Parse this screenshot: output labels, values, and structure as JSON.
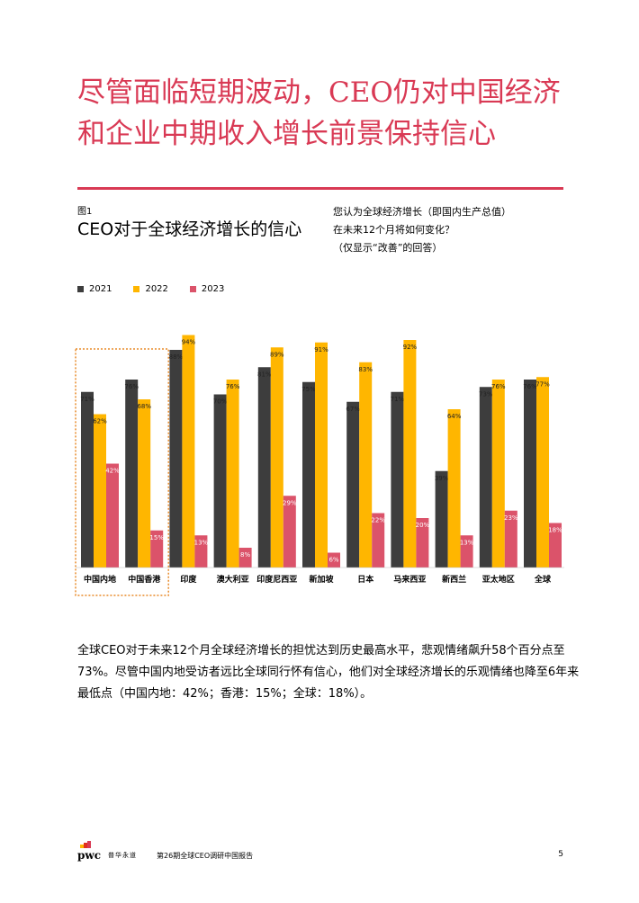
{
  "page": {
    "headline": "尽管面临短期波动，CEO仍对中国经济和企业中期收入增长前景保持信心",
    "figure_label": "图1",
    "figure_title": "CEO对于全球经济增长的信心",
    "question_lines": [
      "您认为全球经济增长（即国内生产总值）",
      "在未来12个月将如何变化？",
      "（仅显示“改善”的回答）"
    ],
    "body_text": "全球CEO对于未来12个月全球经济增长的担忧达到历史最高水平，悲观情绪飙升58个百分点至73%。尽管中国内地受访者远比全球同行怀有信心，他们对全球经济增长的乐观情绪也降至6年来最低点（中国内地：42%；香港：15%；全球：18%）。",
    "footer": {
      "brand": "pwc",
      "brand_cn": "普华永道",
      "report_title": "第26期全球CEO调研中国报告",
      "page_number": "5"
    },
    "colors": {
      "accent": "#d93954",
      "s2021": "#3d3d3d",
      "s2022": "#ffb600",
      "s2023": "#db536a",
      "highlight_box": "#e88b2a"
    }
  },
  "chart_data": {
    "type": "bar",
    "categories": [
      "中国内地",
      "中国香港",
      "印度",
      "澳大利亚",
      "印度尼西亚",
      "新加坡",
      "日本",
      "马来西亚",
      "新西兰",
      "亚太地区",
      "全球"
    ],
    "series": [
      {
        "name": "2021",
        "values": [
          71,
          76,
          88,
          70,
          81,
          75,
          67,
          71,
          39,
          73,
          76
        ]
      },
      {
        "name": "2022",
        "values": [
          62,
          68,
          94,
          76,
          89,
          91,
          83,
          92,
          64,
          76,
          77
        ]
      },
      {
        "name": "2023",
        "values": [
          42,
          15,
          13,
          8,
          29,
          6,
          22,
          20,
          13,
          23,
          18
        ]
      }
    ],
    "value_suffix": "%",
    "ylim": [
      0,
      100
    ],
    "grid": false,
    "legend": "top-left",
    "highlighted_categories": [
      "中国内地",
      "中国香港"
    ]
  }
}
